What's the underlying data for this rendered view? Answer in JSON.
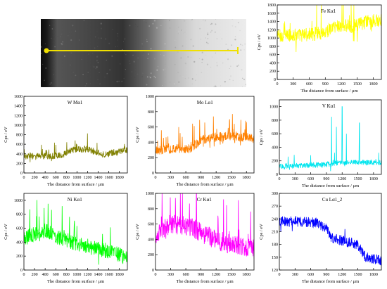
{
  "micrograph": {
    "scan_line_color": "#f0e000"
  },
  "chart_data": [
    {
      "id": "fe",
      "type": "line",
      "series": [
        {
          "name": "Fe Kα1",
          "color": "#ffff00",
          "base": 1100,
          "spread": 170,
          "trend": [
            [
              0,
              1050
            ],
            [
              600,
              1080
            ],
            [
              900,
              1150
            ],
            [
              1100,
              1300
            ],
            [
              1400,
              1280
            ],
            [
              1700,
              1400
            ],
            [
              1950,
              1450
            ]
          ],
          "spikes": 0.08
        }
      ],
      "xlabel": "The distance from surface / μm",
      "ylabel": "Cps / eV",
      "xlim": [
        0,
        1950
      ],
      "ylim": [
        0,
        1800
      ],
      "xticks": [
        0,
        300,
        600,
        900,
        1200,
        1500,
        1800
      ],
      "yticks": [
        0,
        200,
        400,
        600,
        800,
        1000,
        1200,
        1400,
        1600,
        1800
      ],
      "grid": false
    },
    {
      "id": "w",
      "type": "line",
      "series": [
        {
          "name": "W Mα1",
          "color": "#808000",
          "base": 360,
          "spread": 70,
          "trend": [
            [
              0,
              350
            ],
            [
              700,
              360
            ],
            [
              900,
              480
            ],
            [
              1200,
              500
            ],
            [
              1500,
              380
            ],
            [
              1700,
              420
            ],
            [
              1950,
              480
            ]
          ],
          "spikes": 0.06
        }
      ],
      "xlabel": "The distance from surface / μm",
      "ylabel": "Cps / eV",
      "xlim": [
        0,
        1950
      ],
      "ylim": [
        0,
        1600
      ],
      "xticks": [
        0,
        200,
        400,
        600,
        800,
        1000,
        1200,
        1400,
        1600,
        1800
      ],
      "yticks": [
        0,
        200,
        400,
        600,
        800,
        1000,
        1200,
        1400,
        1600
      ],
      "grid": false
    },
    {
      "id": "mo",
      "type": "line",
      "series": [
        {
          "name": "Mo Lα1",
          "color": "#ff8000",
          "base": 300,
          "spread": 60,
          "trend": [
            [
              0,
              300
            ],
            [
              700,
              320
            ],
            [
              900,
              430
            ],
            [
              1200,
              470
            ],
            [
              1600,
              480
            ],
            [
              1950,
              450
            ]
          ],
          "spikes": 0.09
        }
      ],
      "xlabel": "The distance from surface / μm",
      "ylabel": "Cps / eV",
      "xlim": [
        0,
        1950
      ],
      "ylim": [
        0,
        1000
      ],
      "xticks": [
        0,
        300,
        600,
        900,
        1200,
        1500,
        1800
      ],
      "yticks": [
        0,
        200,
        400,
        600,
        800,
        1000
      ],
      "grid": false
    },
    {
      "id": "v",
      "type": "line",
      "series": [
        {
          "name": "V Kα1",
          "color": "#00e5ee",
          "base": 120,
          "spread": 40,
          "trend": [
            [
              0,
              120
            ],
            [
              800,
              140
            ],
            [
              1200,
              180
            ],
            [
              1950,
              170
            ]
          ],
          "spikes": 0.04,
          "peaks": [
            [
              1000,
              850
            ],
            [
              1090,
              700
            ],
            [
              1200,
              1000
            ],
            [
              1280,
              600
            ],
            [
              1530,
              760
            ]
          ]
        }
      ],
      "xlabel": "The distance from surface / μm",
      "ylabel": "Cps / eV",
      "xlim": [
        0,
        1950
      ],
      "ylim": [
        0,
        1100
      ],
      "xticks": [
        0,
        300,
        600,
        900,
        1200,
        1500,
        1800
      ],
      "yticks": [
        0,
        200,
        400,
        600,
        800,
        1000
      ],
      "grid": false
    },
    {
      "id": "ni",
      "type": "line",
      "series": [
        {
          "name": "Ni Kα1",
          "color": "#00ff00",
          "base": 420,
          "spread": 110,
          "trend": [
            [
              0,
              460
            ],
            [
              400,
              560
            ],
            [
              700,
              450
            ],
            [
              1000,
              380
            ],
            [
              1400,
              300
            ],
            [
              1700,
              260
            ],
            [
              1950,
              160
            ]
          ],
          "spikes": 0.07
        }
      ],
      "xlabel": "The distance from surface / μm",
      "ylabel": "Cps / eV",
      "xlim": [
        0,
        1950
      ],
      "ylim": [
        0,
        1100
      ],
      "xticks": [
        0,
        200,
        400,
        600,
        800,
        1000,
        1200,
        1400,
        1600,
        1800
      ],
      "yticks": [
        0,
        200,
        400,
        600,
        800,
        1000
      ],
      "grid": false
    },
    {
      "id": "cr",
      "type": "line",
      "series": [
        {
          "name": "Cr Kα1",
          "color": "#ff00ff",
          "base": 470,
          "spread": 130,
          "trend": [
            [
              0,
              450
            ],
            [
              300,
              600
            ],
            [
              700,
              560
            ],
            [
              1000,
              450
            ],
            [
              1400,
              350
            ],
            [
              1950,
              280
            ]
          ],
          "spikes": 0.07
        }
      ],
      "xlabel": "The distance from surface / μm",
      "ylabel": "Cps / eV",
      "xlim": [
        0,
        1950
      ],
      "ylim": [
        0,
        1000
      ],
      "xticks": [
        0,
        300,
        600,
        900,
        1200,
        1500,
        1800
      ],
      "yticks": [
        0,
        200,
        400,
        600,
        800,
        1000
      ],
      "grid": false
    },
    {
      "id": "cu",
      "type": "line",
      "series": [
        {
          "name": "Cu Lα1_2",
          "color": "#0000ff",
          "base": 230,
          "spread": 12,
          "trend": [
            [
              0,
              235
            ],
            [
              700,
              232
            ],
            [
              900,
              218
            ],
            [
              1000,
              195
            ],
            [
              1500,
              180
            ],
            [
              1650,
              150
            ],
            [
              1950,
              142
            ]
          ],
          "spikes": 0.03
        }
      ],
      "xlabel": "The distance from surface / μm",
      "ylabel": "Cps / eV",
      "xlim": [
        0,
        1950
      ],
      "ylim": [
        120,
        300
      ],
      "xticks": [
        0,
        300,
        600,
        900,
        1200,
        1500,
        1800
      ],
      "yticks": [
        120,
        150,
        180,
        210,
        240,
        270,
        300
      ],
      "grid": false
    }
  ]
}
